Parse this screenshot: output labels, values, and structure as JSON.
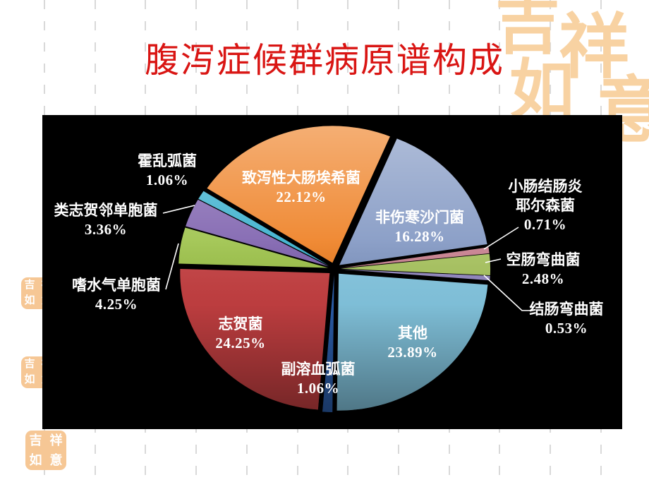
{
  "slide": {
    "title": "腹泻症候群病原谱构成",
    "watermark_text": "吉祥如意",
    "stamp_text": "吉祥如意",
    "colors": {
      "title": "#d91513",
      "chart_background": "#000000",
      "label_text": "#ffffff",
      "watermark": "#f8d2a2",
      "gridline": "#d9d9d9"
    }
  },
  "chart_data": {
    "type": "pie",
    "title": "腹泻症候群病原谱构成",
    "unit": "percent",
    "style": "exploded-3d",
    "legend_position": "none",
    "start_angle_deg": -57,
    "direction": "clockwise",
    "slices": [
      {
        "label": "致泻性大肠埃希菌",
        "pct": "22.12%",
        "value": 22.12,
        "color": "#ee7e20"
      },
      {
        "label": "非伤寒沙门菌",
        "pct": "16.28%",
        "value": 16.28,
        "color": "#8096c2"
      },
      {
        "label": "小肠结肠炎耶尔森菌",
        "pct": "0.71%",
        "value": 0.71,
        "color": "#c9808f"
      },
      {
        "label": "空肠弯曲菌",
        "pct": "2.48%",
        "value": 2.48,
        "color": "#a8c45e"
      },
      {
        "label": "结肠弯曲菌",
        "pct": "0.53%",
        "value": 0.53,
        "color": "#9388c0"
      },
      {
        "label": "其他",
        "pct": "23.89%",
        "value": 23.89,
        "color": "#85c8e2"
      },
      {
        "label": "副溶血弧菌",
        "pct": "1.06%",
        "value": 1.06,
        "color": "#2c5fac"
      },
      {
        "label": "志贺菌",
        "pct": "24.25%",
        "value": 24.25,
        "color": "#c64042"
      },
      {
        "label": "嗜水气单胞菌",
        "pct": "4.25%",
        "value": 4.25,
        "color": "#9cc248"
      },
      {
        "label": "类志贺邻单胞菌",
        "pct": "3.36%",
        "value": 3.36,
        "color": "#7c5fad"
      },
      {
        "label": "霍乱弧菌",
        "pct": "1.06%",
        "value": 1.06,
        "color": "#35aecc"
      }
    ]
  }
}
